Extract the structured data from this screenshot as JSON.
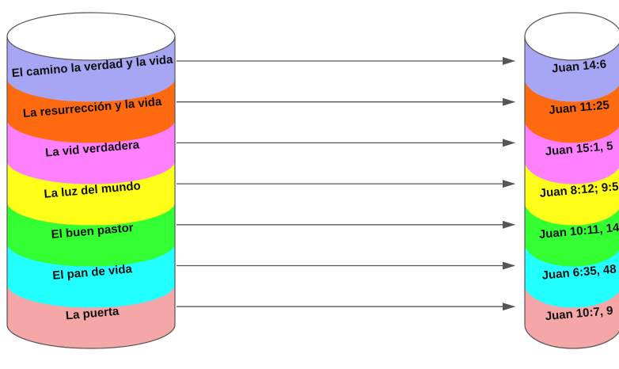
{
  "segments": [
    {
      "name": "El camino la verdad y la vida",
      "ref": "Juan 14:6",
      "color": "#a6a6f5"
    },
    {
      "name": "La resurrección y la vida",
      "ref": "Juan 11:25",
      "color": "#ff6a10"
    },
    {
      "name": "La vid verdadera",
      "ref": "Juan 15:1, 5",
      "color": "#ff80ff"
    },
    {
      "name": "La luz del mundo",
      "ref": "Juan 8:12; 9:5",
      "color": "#ffff1a"
    },
    {
      "name": "El buen pastor",
      "ref": "Juan 10:11, 14",
      "color": "#33ff33"
    },
    {
      "name": "El pan de vida",
      "ref": "Juan 6:35, 48",
      "color": "#22ffff"
    },
    {
      "name": "La puerta",
      "ref": "Juan 10:7, 9",
      "color": "#f5a6a6"
    }
  ],
  "colors": {
    "top_face": "#ffffff",
    "outline": "#555555",
    "arrow": "#555555"
  }
}
